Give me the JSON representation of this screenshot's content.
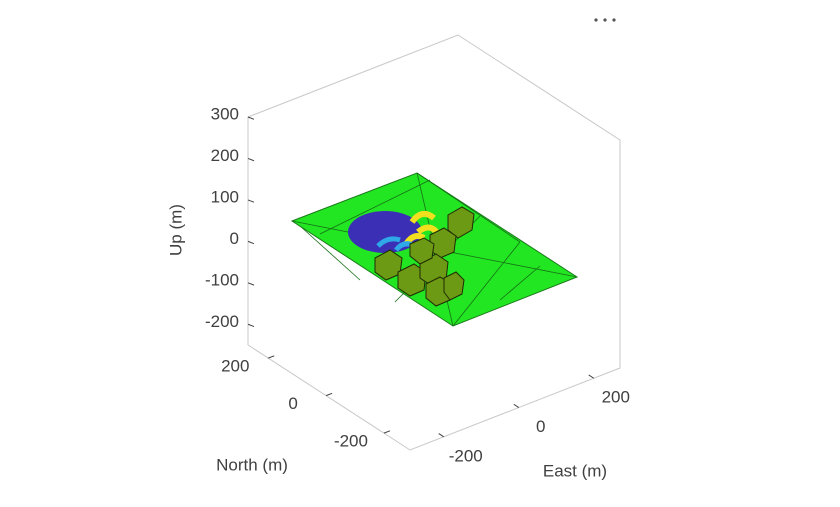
{
  "chart_data": {
    "type": "scene3d",
    "xlabel": "East (m)",
    "ylabel": "North (m)",
    "zlabel": "Up (m)",
    "xlim": [
      -290,
      270
    ],
    "ylim": [
      -290,
      270
    ],
    "zlim": [
      -250,
      300
    ],
    "xticks": [
      -200,
      0,
      200
    ],
    "yticks": [
      -200,
      0,
      200
    ],
    "zticks": [
      -200,
      -100,
      0,
      100,
      200,
      300
    ]
  }
}
